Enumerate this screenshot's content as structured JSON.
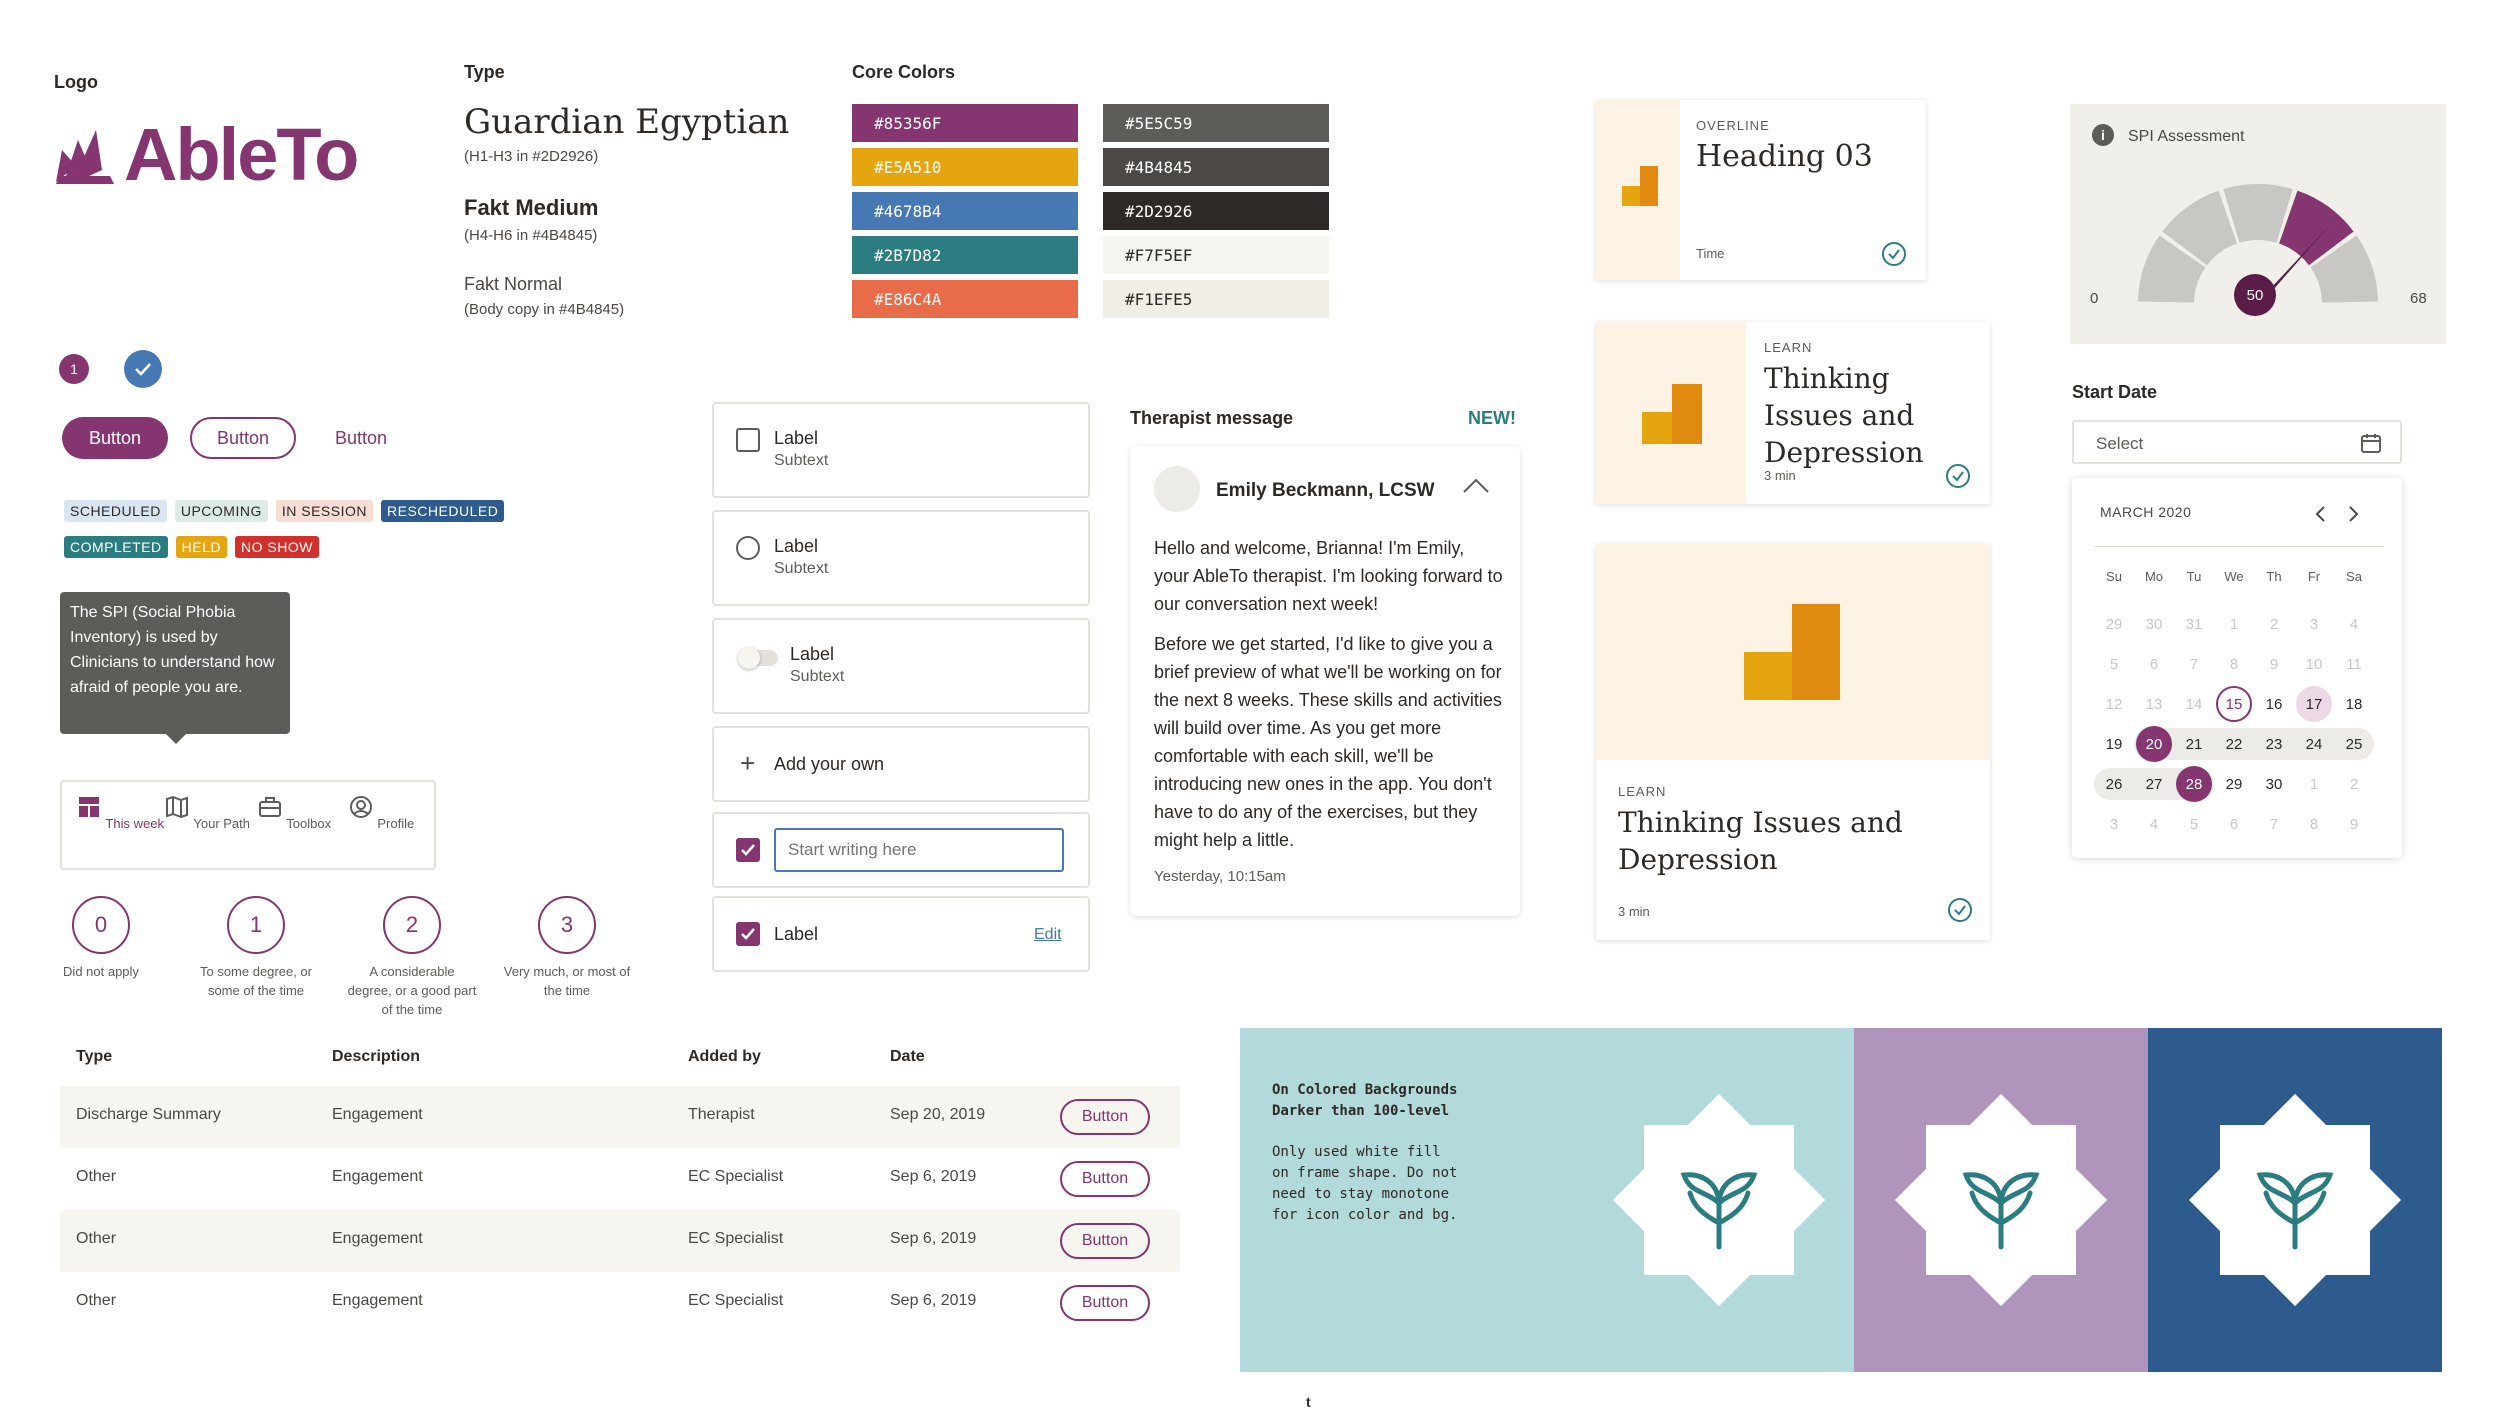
{
  "logo": {
    "label": "Logo",
    "wordmark": "AbleTo"
  },
  "type": {
    "label": "Type",
    "items": [
      {
        "name": "Guardian Egyptian",
        "note": "(H1-H3 in #2D2926)"
      },
      {
        "name": "Fakt Medium",
        "note": "(H4-H6 in #4B4845)"
      },
      {
        "name": "Fakt Normal",
        "note": "(Body copy in #4B4845)"
      }
    ]
  },
  "core_colors": {
    "label": "Core Colors",
    "left": [
      {
        "hex": "#85356F",
        "color": "#85356F"
      },
      {
        "hex": "#E5A510",
        "color": "#E5A510"
      },
      {
        "hex": "#4678B4",
        "color": "#4678B4"
      },
      {
        "hex": "#2B7D82",
        "color": "#2B7D82"
      },
      {
        "hex": "#E86C4A",
        "color": "#E86C4A"
      }
    ],
    "right": [
      {
        "hex": "#5E5C59",
        "color": "#5E5C59"
      },
      {
        "hex": "#4B4845",
        "color": "#4B4845"
      },
      {
        "hex": "#2D2926",
        "color": "#2D2926"
      },
      {
        "hex": "#F7F5EF",
        "color": "#F7F5EF"
      },
      {
        "hex": "#F1EFE5",
        "color": "#F1EFE5"
      }
    ]
  },
  "steps": {
    "first": "1"
  },
  "buttons": {
    "primary": "Button",
    "secondary": "Button",
    "text": "Button"
  },
  "badges": [
    {
      "label": "SCHEDULED",
      "bg": "#D9E6F2",
      "fg": "#2D2926"
    },
    {
      "label": "UPCOMING",
      "bg": "#DCEBE7",
      "fg": "#2D2926"
    },
    {
      "label": "IN SESSION",
      "bg": "#F7DDD3",
      "fg": "#2D2926"
    },
    {
      "label": "RESCHEDULED",
      "bg": "#2E5B8E",
      "fg": "#FFFFFF"
    },
    {
      "label": "COMPLETED",
      "bg": "#2B7D82",
      "fg": "#FFFFFF"
    },
    {
      "label": "HELD",
      "bg": "#E5A510",
      "fg": "#FFFFFF"
    },
    {
      "label": "NO SHOW",
      "bg": "#D0312D",
      "fg": "#FFFFFF"
    }
  ],
  "tooltip": {
    "text": "The SPI (Social Phobia Inventory) is used by Clinicians to understand how afraid of people you are."
  },
  "bottom_nav": [
    "This week",
    "Your Path",
    "Toolbox",
    "Profile"
  ],
  "scale": [
    {
      "value": "0",
      "caption": "Did not apply"
    },
    {
      "value": "1",
      "caption": "To some degree, or some of the time"
    },
    {
      "value": "2",
      "caption": "A considerable degree, or a good part of the time"
    },
    {
      "value": "3",
      "caption": "Very much, or most of the time"
    }
  ],
  "form": {
    "checkbox": {
      "label": "Label",
      "sub": "Subtext"
    },
    "radio": {
      "label": "Label",
      "sub": "Subtext"
    },
    "toggle": {
      "label": "Label",
      "sub": "Subtext"
    },
    "add": "Add your own",
    "input_placeholder": "Start writing here",
    "checked": {
      "label": "Label",
      "edit": "Edit"
    }
  },
  "message": {
    "heading": "Therapist message",
    "new": "NEW!",
    "sender": "Emily Beckmann, LCSW",
    "p1": "Hello and welcome, Brianna! I'm Emily, your AbleTo therapist. I'm looking forward to our conversation next week!",
    "p2": "Before we get started, I'd like to give you a brief preview of what we'll be working on for the next 8 weeks. These skills and activities will build over time. As you get more comfortable with each skill, we'll be introducing new ones in the app. You don't have to do any of the exercises, but they might help a little.",
    "time": "Yesterday, 10:15am"
  },
  "cards": [
    {
      "overline": "OVERLINE",
      "title": "Heading 03",
      "meta": "Time"
    },
    {
      "overline": "LEARN",
      "title": "Thinking Issues and Depression",
      "meta": "3 min"
    },
    {
      "overline": "LEARN",
      "title": "Thinking Issues and Depression",
      "meta": "3 min"
    }
  ],
  "gauge": {
    "title": "SPI Assessment",
    "min": "0",
    "max": "68",
    "value": "50",
    "fraction": 0.735
  },
  "datepicker": {
    "label": "Start Date",
    "placeholder": "Select",
    "month": "MARCH 2020",
    "weekdays": [
      "Su",
      "Mo",
      "Tu",
      "We",
      "Th",
      "Fr",
      "Sa"
    ],
    "weeks": [
      [
        "29",
        "30",
        "31",
        "1",
        "2",
        "3",
        "4"
      ],
      [
        "5",
        "6",
        "7",
        "8",
        "9",
        "10",
        "11"
      ],
      [
        "12",
        "13",
        "14",
        "15",
        "16",
        "17",
        "18"
      ],
      [
        "19",
        "20",
        "21",
        "22",
        "23",
        "24",
        "25"
      ],
      [
        "26",
        "27",
        "28",
        "29",
        "30",
        "1",
        "2"
      ],
      [
        "3",
        "4",
        "5",
        "6",
        "7",
        "8",
        "9"
      ]
    ],
    "today": "15",
    "range_start": "20",
    "range_end": "28",
    "marked": "17"
  },
  "table": {
    "headers": [
      "Type",
      "Description",
      "Added by",
      "Date"
    ],
    "rows": [
      [
        "Discharge Summary",
        "Engagement",
        "Therapist",
        "Sep 20, 2019",
        "Button"
      ],
      [
        "Other",
        "Engagement",
        "EC Specialist",
        "Sep 6, 2019",
        "Button"
      ],
      [
        "Other",
        "Engagement",
        "EC Specialist",
        "Sep 6, 2019",
        "Button"
      ],
      [
        "Other",
        "Engagement",
        "EC Specialist",
        "Sep 6, 2019",
        "Button"
      ]
    ]
  },
  "colored_backgrounds": {
    "note_title": "On Colored Backgrounds\nDarker than 100-level",
    "note_body": "Only used white fill\non frame shape. Do not\nneed to stay monotone\nfor icon color and bg.",
    "panels": [
      "#B3DADA",
      "#AF94BC",
      "#2E5B8E"
    ],
    "footer": "t"
  }
}
